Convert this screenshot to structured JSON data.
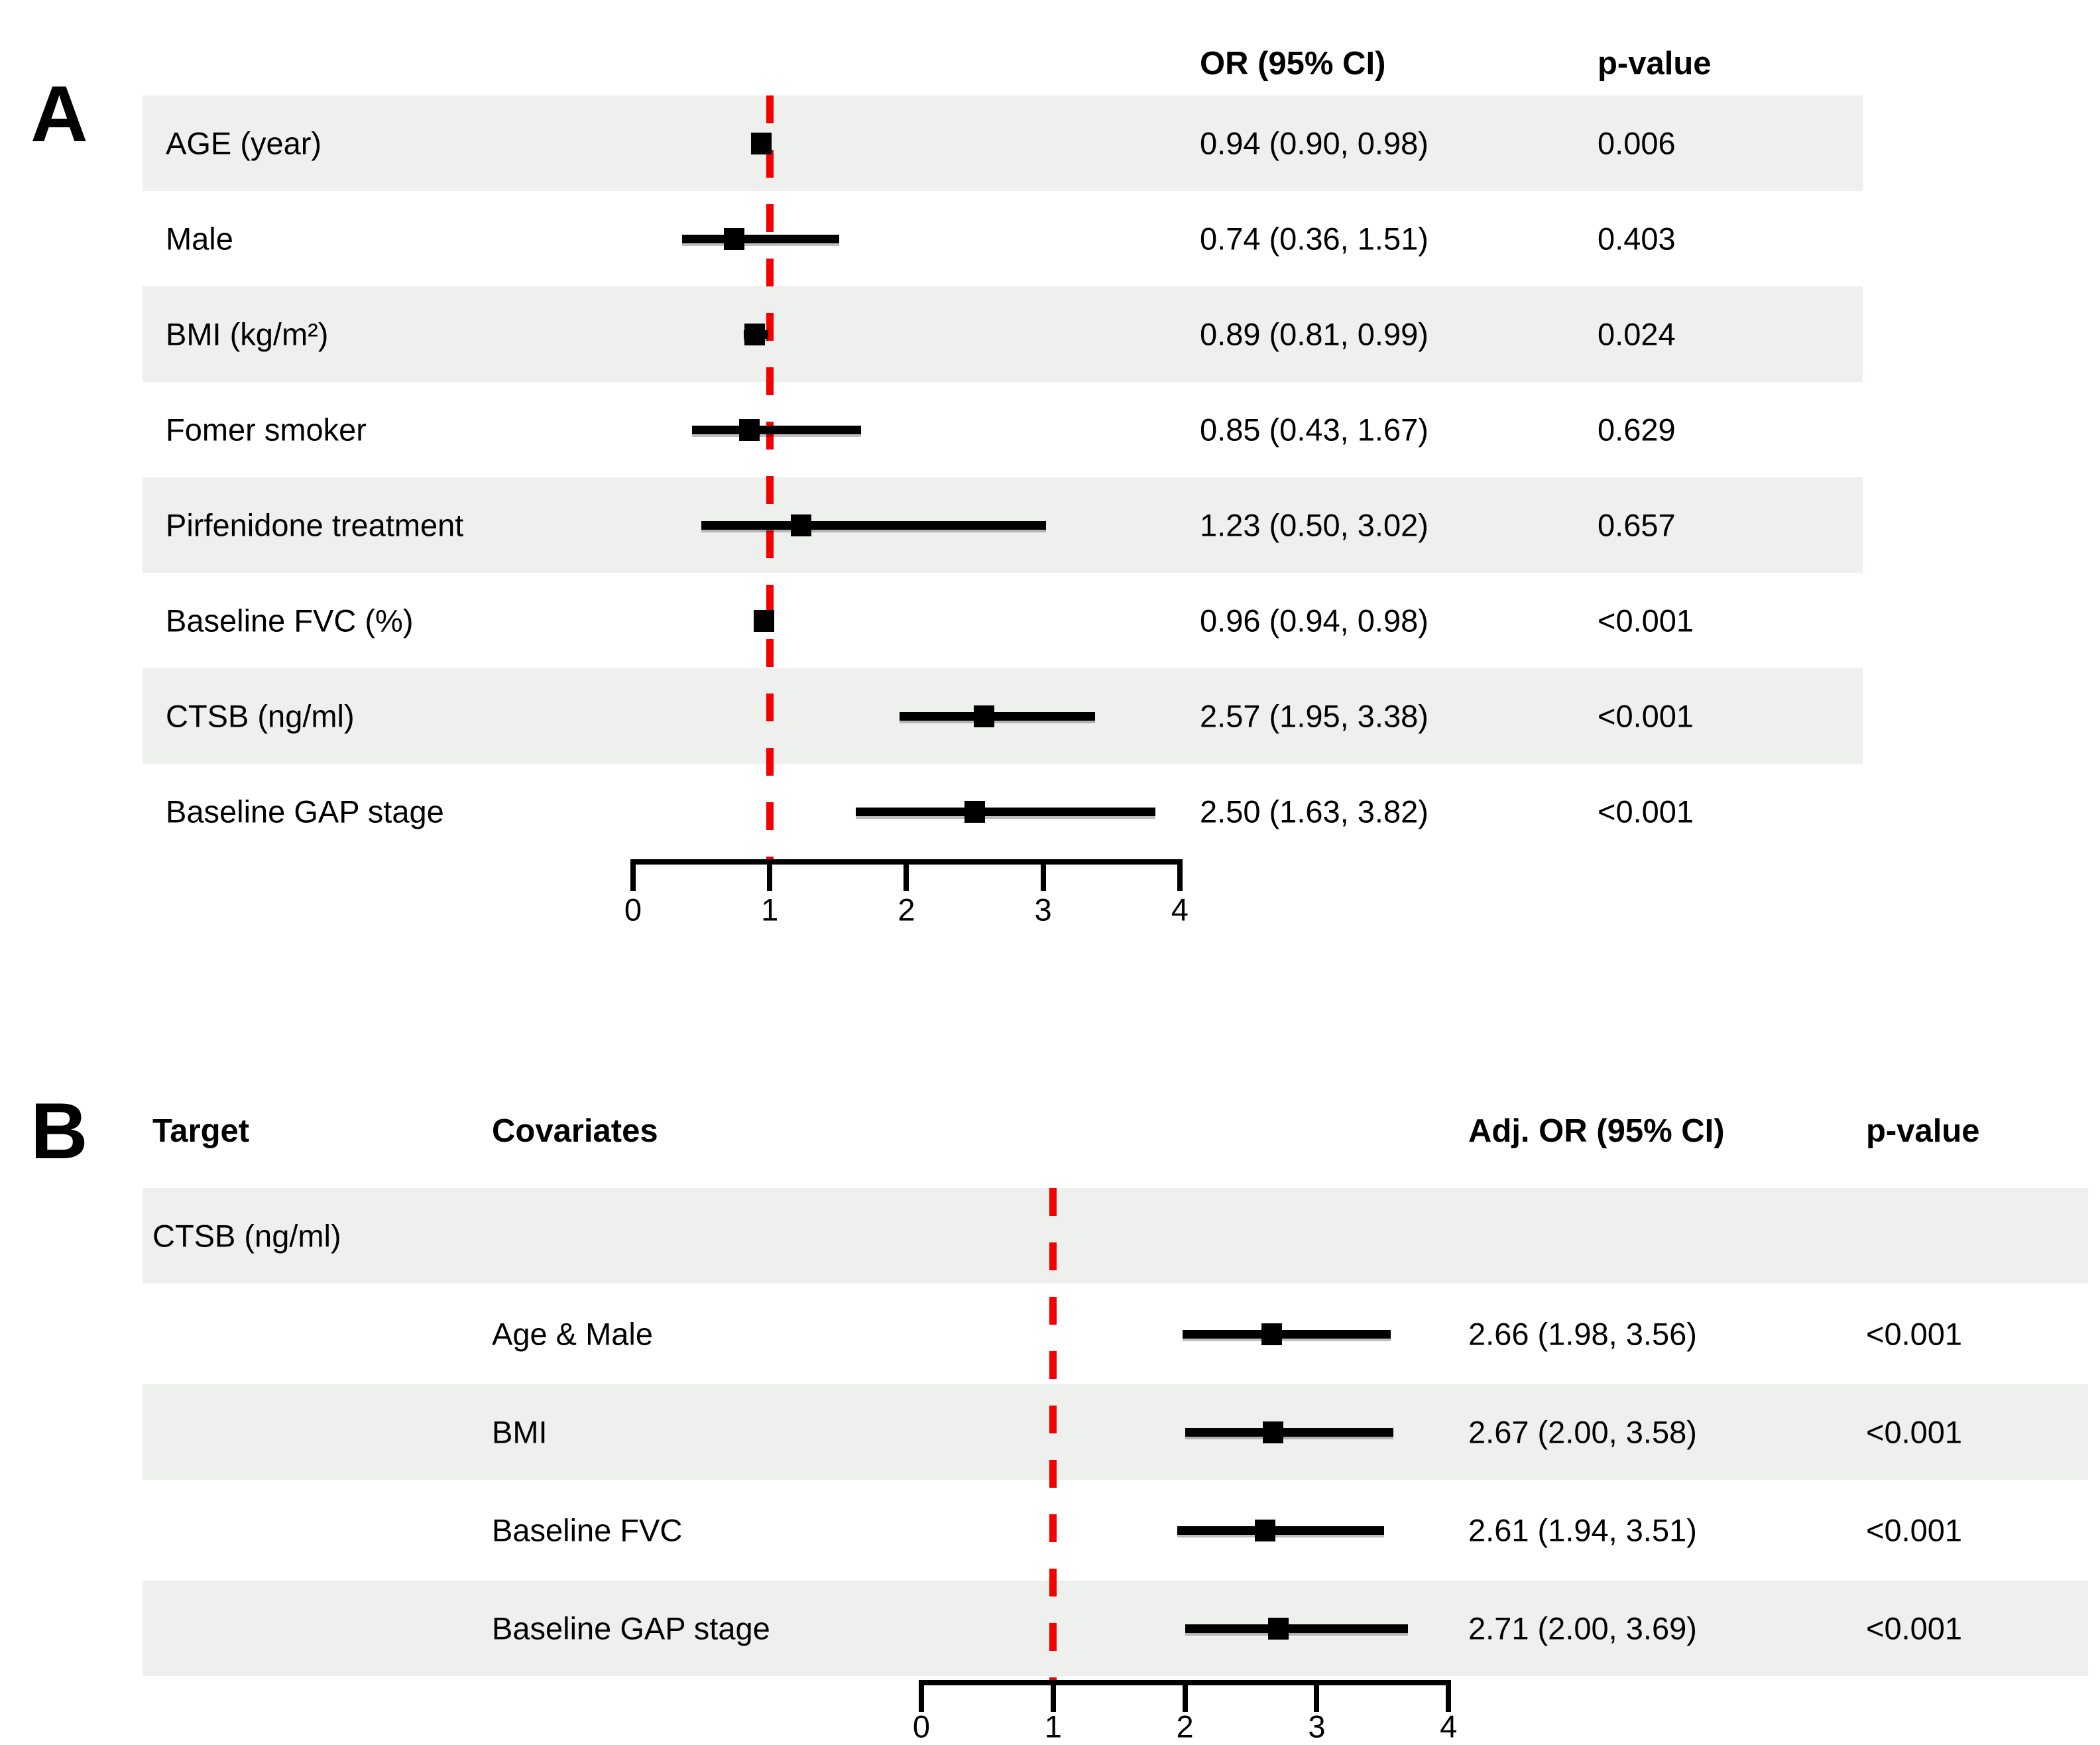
{
  "colors": {
    "shaded_row": "#eef0ee",
    "reference_line": "#f40000",
    "bar": "#000000",
    "text": "#000000",
    "background": "#ffffff"
  },
  "chart_data": [
    {
      "type": "scatter",
      "subtype": "forest",
      "panel_label": "A",
      "columns": [
        "OR (95% CI)",
        "p-value"
      ],
      "xlim": [
        0,
        4
      ],
      "x_ticks": [
        0,
        1,
        2,
        3,
        4
      ],
      "x_tick_labels": [
        "0",
        "1",
        "2",
        "3",
        "4"
      ],
      "reference_line_x": 1,
      "legend": "none",
      "grid": "off",
      "rows": [
        {
          "label": "AGE (year)",
          "or": 0.94,
          "ci_low": 0.9,
          "ci_high": 0.98,
          "or_text": "0.94 (0.90, 0.98)",
          "p_value": "0.006",
          "shaded": true
        },
        {
          "label": "Male",
          "or": 0.74,
          "ci_low": 0.36,
          "ci_high": 1.51,
          "or_text": "0.74 (0.36, 1.51)",
          "p_value": "0.403",
          "shaded": false
        },
        {
          "label": "BMI (kg/m²)",
          "or": 0.89,
          "ci_low": 0.81,
          "ci_high": 0.99,
          "or_text": "0.89 (0.81, 0.99)",
          "p_value": "0.024",
          "shaded": true
        },
        {
          "label": "Fomer smoker",
          "or": 0.85,
          "ci_low": 0.43,
          "ci_high": 1.67,
          "or_text": "0.85 (0.43, 1.67)",
          "p_value": "0.629",
          "shaded": false
        },
        {
          "label": "Pirfenidone treatment",
          "or": 1.23,
          "ci_low": 0.5,
          "ci_high": 3.02,
          "or_text": "1.23 (0.50, 3.02)",
          "p_value": "0.657",
          "shaded": true
        },
        {
          "label": "Baseline FVC (%)",
          "or": 0.96,
          "ci_low": 0.94,
          "ci_high": 0.98,
          "or_text": "0.96 (0.94, 0.98)",
          "p_value": "<0.001",
          "shaded": false
        },
        {
          "label": "CTSB (ng/ml)",
          "or": 2.57,
          "ci_low": 1.95,
          "ci_high": 3.38,
          "or_text": "2.57 (1.95, 3.38)",
          "p_value": "<0.001",
          "shaded": true
        },
        {
          "label": "Baseline GAP stage",
          "or": 2.5,
          "ci_low": 1.63,
          "ci_high": 3.82,
          "or_text": "2.50 (1.63, 3.82)",
          "p_value": "<0.001",
          "shaded": false
        }
      ]
    },
    {
      "type": "scatter",
      "subtype": "forest",
      "panel_label": "B",
      "columns": [
        "Target",
        "Covariates",
        "Adj. OR (95% CI)",
        "p-value"
      ],
      "target_row": {
        "label": "CTSB (ng/ml)",
        "shaded": true
      },
      "xlim": [
        0,
        4
      ],
      "x_ticks": [
        0,
        1,
        2,
        3,
        4
      ],
      "x_tick_labels": [
        "0",
        "1",
        "2",
        "3",
        "4"
      ],
      "reference_line_x": 1,
      "legend": "none",
      "grid": "off",
      "rows": [
        {
          "label": "Age & Male",
          "or": 2.66,
          "ci_low": 1.98,
          "ci_high": 3.56,
          "or_text": "2.66 (1.98, 3.56)",
          "p_value": "<0.001",
          "shaded": false
        },
        {
          "label": "BMI",
          "or": 2.67,
          "ci_low": 2.0,
          "ci_high": 3.58,
          "or_text": "2.67 (2.00, 3.58)",
          "p_value": "<0.001",
          "shaded": true
        },
        {
          "label": "Baseline FVC",
          "or": 2.61,
          "ci_low": 1.94,
          "ci_high": 3.51,
          "or_text": "2.61 (1.94, 3.51)",
          "p_value": "<0.001",
          "shaded": false
        },
        {
          "label": "Baseline GAP stage",
          "or": 2.71,
          "ci_low": 2.0,
          "ci_high": 3.69,
          "or_text": "2.71 (2.00, 3.69)",
          "p_value": "<0.001",
          "shaded": true
        }
      ]
    }
  ]
}
